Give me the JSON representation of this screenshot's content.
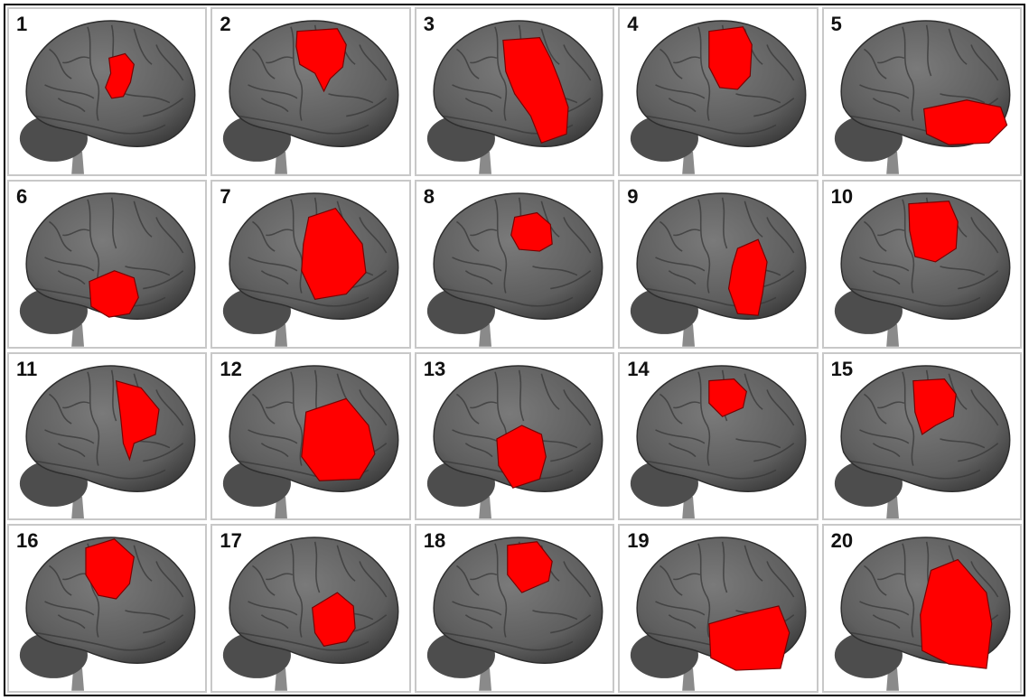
{
  "panels": [
    {
      "number": "1"
    },
    {
      "number": "2"
    },
    {
      "number": "3"
    },
    {
      "number": "4"
    },
    {
      "number": "5"
    },
    {
      "number": "6"
    },
    {
      "number": "7"
    },
    {
      "number": "8"
    },
    {
      "number": "9"
    },
    {
      "number": "10"
    },
    {
      "number": "11"
    },
    {
      "number": "12"
    },
    {
      "number": "13"
    },
    {
      "number": "14"
    },
    {
      "number": "15"
    },
    {
      "number": "16"
    },
    {
      "number": "17"
    },
    {
      "number": "18"
    },
    {
      "number": "19"
    },
    {
      "number": "20"
    }
  ],
  "colors": {
    "brain": "#5e5e5e",
    "brain_dark": "#3a3a3a",
    "lesion": "#ff0000",
    "panel_border": "#c8c8c8",
    "frame_border": "#000000"
  }
}
